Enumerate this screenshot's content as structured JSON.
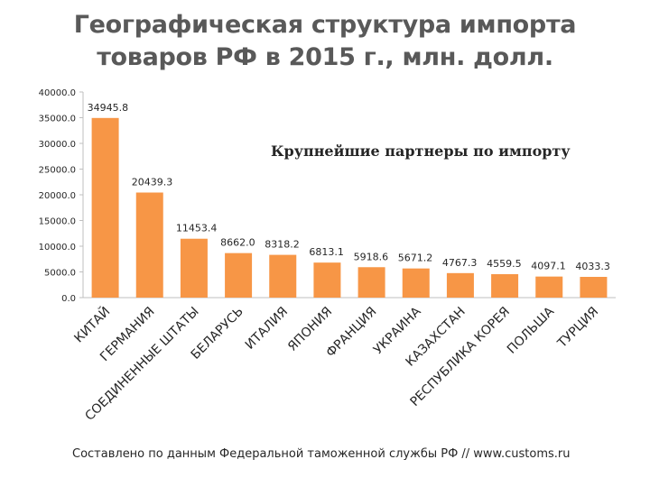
{
  "title_line1": "Географическая структура импорта",
  "title_line2": "товаров РФ в 2015 г., млн. долл.",
  "subtitle": "Крупнейшие партнеры по импорту",
  "source": "Составлено по данным Федеральной таможенной службы РФ // www.customs.ru",
  "bar_color": "#F79646",
  "chart_data": {
    "type": "bar",
    "title": "Географическая структура импорта товаров РФ в 2015 г., млн. долл.",
    "subtitle": "Крупнейшие партнеры по импорту",
    "categories": [
      "КИТАЙ",
      "ГЕРМАНИЯ",
      "СОЕДИНЕННЫЕ ШТАТЫ",
      "БЕЛАРУСЬ",
      "ИТАЛИЯ",
      "ЯПОНИЯ",
      "ФРАНЦИЯ",
      "УКРАИНА",
      "КАЗАХСТАН",
      "РЕСПУБЛИКА КОРЕЯ",
      "ПОЛЬША",
      "ТУРЦИЯ"
    ],
    "values": [
      34945.8,
      20439.3,
      11453.4,
      8662.0,
      8318.2,
      6813.1,
      5918.6,
      5671.2,
      4767.3,
      4559.5,
      4097.1,
      4033.3
    ],
    "value_labels": [
      "34945.8",
      "20439.3",
      "11453.4",
      "8662.0",
      "8318.2",
      "6813.1",
      "5918.6",
      "5671.2",
      "4767.3",
      "4559.5",
      "4097.1",
      "4033.3"
    ],
    "yticks": [
      "0.0",
      "5000.0",
      "10000.0",
      "15000.0",
      "20000.0",
      "25000.0",
      "30000.0",
      "35000.0",
      "40000.0"
    ],
    "ylim": [
      0,
      40000
    ],
    "grid": false,
    "legend": "none"
  }
}
